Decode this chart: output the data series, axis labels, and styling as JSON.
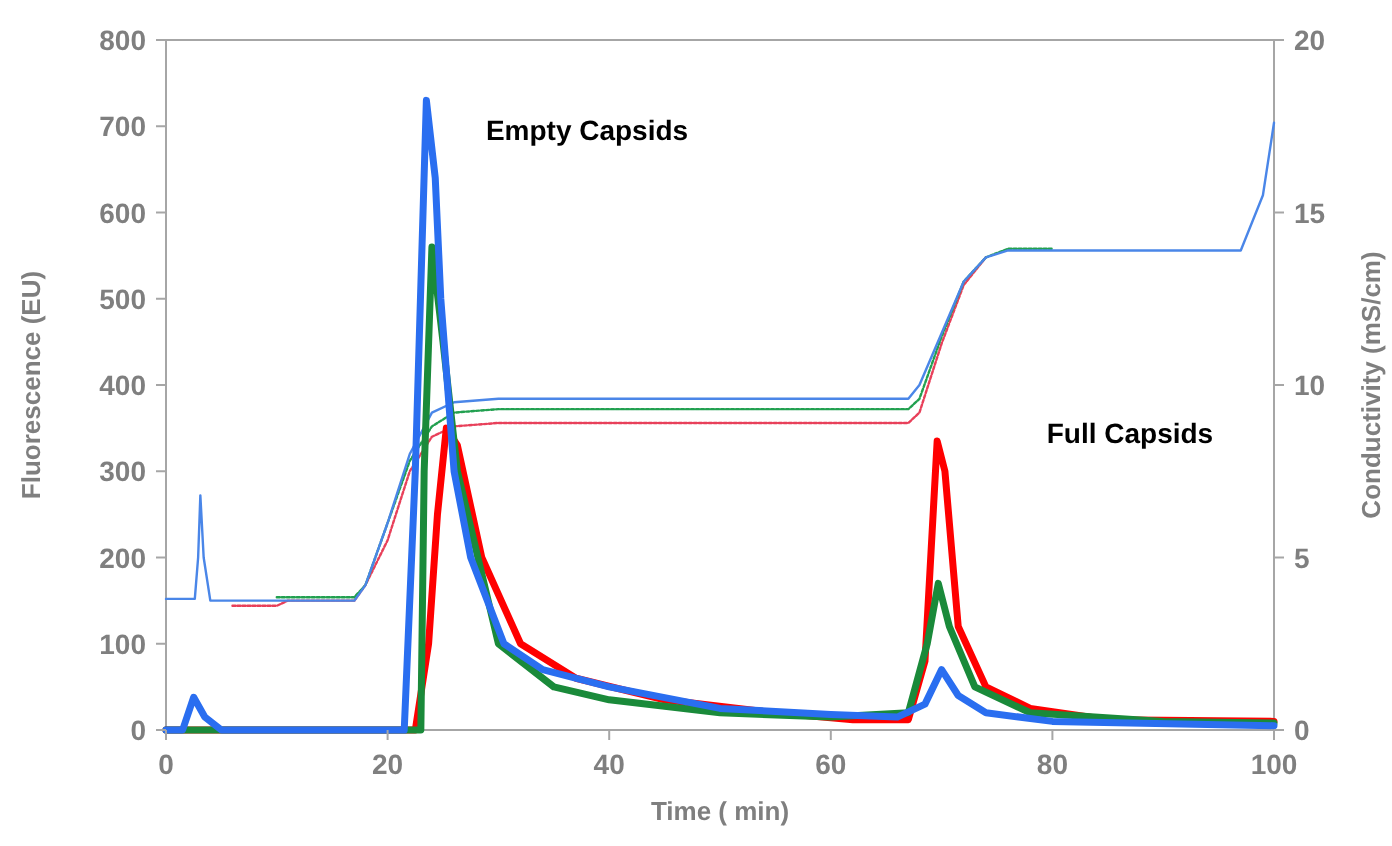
{
  "chart_data": {
    "type": "line",
    "xlabel": "Time ( min)",
    "ylabel": "Fluorescence (EU)",
    "y2label": "Conductivity (mS/cm)",
    "xlim": [
      0,
      100
    ],
    "xticks": [
      0,
      20,
      40,
      60,
      80,
      100
    ],
    "ylim": [
      0,
      800
    ],
    "yticks": [
      0,
      100,
      200,
      300,
      400,
      500,
      600,
      700,
      800
    ],
    "y2lim": [
      0,
      20
    ],
    "y2ticks": [
      0,
      5,
      10,
      15,
      20
    ],
    "grid": false,
    "marker": "none",
    "annotations": [
      "Empty Capsids",
      "Full Capsids"
    ],
    "series": [
      {
        "color": "#ff0000",
        "line_style": "solid",
        "x": [
          0,
          22.5,
          23.7,
          24.5,
          25.3,
          26.3,
          28.5,
          32,
          37,
          45,
          55,
          62,
          67,
          68.5,
          69.6,
          70.3,
          71.5,
          74,
          78,
          85,
          100
        ],
        "values": [
          0,
          0,
          100,
          250,
          350,
          330,
          200,
          100,
          60,
          35,
          20,
          12,
          12,
          80,
          335,
          300,
          120,
          50,
          25,
          12,
          10
        ]
      },
      {
        "color": "#1a8a3a",
        "line_style": "solid",
        "x": [
          0,
          23,
          23.3,
          24,
          25,
          26.3,
          30,
          35,
          40,
          50,
          60,
          67,
          68.7,
          69.7,
          70.7,
          73,
          78,
          90,
          100
        ],
        "values": [
          0,
          0,
          300,
          560,
          450,
          300,
          100,
          50,
          35,
          20,
          15,
          20,
          100,
          170,
          120,
          50,
          20,
          10,
          8
        ]
      },
      {
        "color": "#2a6ef0",
        "line_style": "solid",
        "x": [
          0,
          1.5,
          2.5,
          3.5,
          5,
          21.5,
          22.5,
          23.5,
          24.3,
          24.8,
          26,
          27.5,
          30.5,
          34,
          40,
          50,
          60,
          66,
          68.5,
          70,
          71.5,
          74,
          80,
          100
        ],
        "values": [
          0,
          0,
          38,
          15,
          0,
          0,
          300,
          730,
          640,
          500,
          300,
          200,
          100,
          70,
          50,
          25,
          18,
          15,
          30,
          70,
          40,
          20,
          10,
          5
        ]
      },
      {
        "color": "#e8405a",
        "line_style": "dotted",
        "axis": "y2",
        "x": [
          6,
          10,
          11,
          17,
          18,
          20,
          22,
          24,
          26,
          30,
          67,
          68,
          70,
          72,
          74
        ],
        "values": [
          3.6,
          3.6,
          3.75,
          3.75,
          4.2,
          5.5,
          7.5,
          8.5,
          8.8,
          8.9,
          8.9,
          9.2,
          11.2,
          12.9,
          13.7
        ]
      },
      {
        "color": "#22a050",
        "line_style": "dotted",
        "axis": "y2",
        "x": [
          10,
          17,
          18,
          20,
          22,
          24,
          26,
          30,
          67,
          68,
          70,
          72,
          74,
          76,
          80
        ],
        "values": [
          3.85,
          3.85,
          4.2,
          6,
          7.8,
          8.8,
          9.2,
          9.3,
          9.3,
          9.6,
          11.4,
          13,
          13.7,
          13.95,
          13.95
        ]
      },
      {
        "color": "#4a86e8",
        "line_style": "solid",
        "axis": "y2",
        "x": [
          0,
          2.6,
          2.9,
          3.1,
          3.4,
          4,
          17,
          18,
          20,
          22,
          24,
          26,
          30,
          67,
          68,
          70,
          72,
          74,
          76,
          80,
          97,
          99,
          100
        ],
        "values": [
          3.8,
          3.8,
          5,
          6.8,
          5,
          3.75,
          3.75,
          4.2,
          6,
          8,
          9.2,
          9.5,
          9.6,
          9.6,
          10,
          11.5,
          13,
          13.7,
          13.9,
          13.9,
          13.9,
          15.5,
          17.6
        ]
      }
    ]
  }
}
